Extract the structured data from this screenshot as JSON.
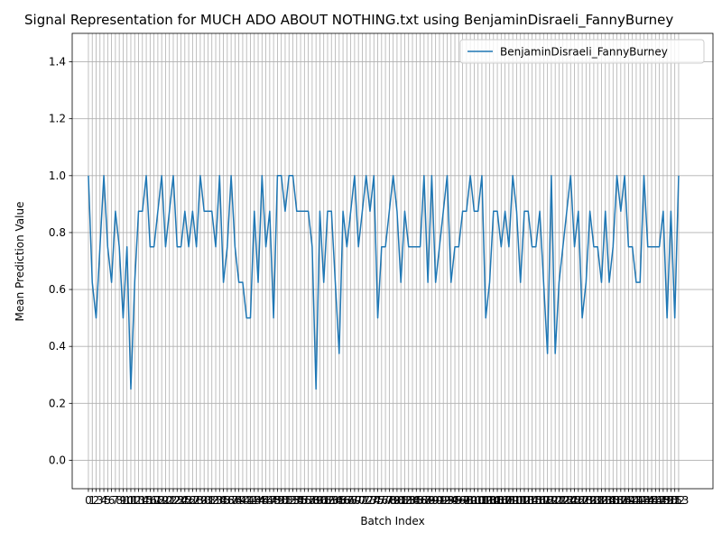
{
  "chart_data": {
    "type": "line",
    "title": "Signal Representation for MUCH ADO ABOUT NOTHING.txt using BenjaminDisraeli_FannyBurney",
    "x_label": "Batch Index",
    "y_label": "Mean Prediction Value",
    "x": [
      0,
      1,
      2,
      3,
      4,
      5,
      6,
      7,
      8,
      9,
      10,
      11,
      12,
      13,
      14,
      15,
      16,
      17,
      18,
      19,
      20,
      21,
      22,
      23,
      24,
      25,
      26,
      27,
      28,
      29,
      30,
      31,
      32,
      33,
      34,
      35,
      36,
      37,
      38,
      39,
      40,
      41,
      42,
      43,
      44,
      45,
      46,
      47,
      48,
      49,
      50,
      51,
      52,
      53,
      54,
      55,
      56,
      57,
      58,
      59,
      60,
      61,
      62,
      63,
      64,
      65,
      66,
      67,
      68,
      69,
      70,
      71,
      72,
      73,
      74,
      75,
      76,
      77,
      78,
      79,
      80,
      81,
      82,
      83,
      84,
      85,
      86,
      87,
      88,
      89,
      90,
      91,
      92,
      93,
      94,
      95,
      96,
      97,
      98,
      99,
      100,
      101,
      102,
      103,
      104,
      105,
      106,
      107,
      108,
      109,
      110,
      111,
      112,
      113,
      114,
      115,
      116,
      117,
      118,
      119,
      120,
      121,
      122,
      123,
      124,
      125,
      126,
      127,
      128,
      129,
      130,
      131,
      132,
      133,
      134,
      135,
      136,
      137,
      138,
      139,
      140,
      141,
      142,
      143,
      144,
      145,
      146,
      147,
      148,
      149,
      150,
      151,
      152,
      153
    ],
    "series": [
      {
        "name": "BenjaminDisraeli_FannyBurney",
        "color": "#1f77b4",
        "values": [
          1.0,
          0.625,
          0.5,
          0.75,
          1.0,
          0.75,
          0.625,
          0.875,
          0.75,
          0.5,
          0.75,
          0.25,
          0.625,
          0.875,
          0.875,
          1.0,
          0.75,
          0.75,
          0.875,
          1.0,
          0.75,
          0.875,
          1.0,
          0.75,
          0.75,
          0.875,
          0.75,
          0.875,
          0.75,
          1.0,
          0.875,
          0.875,
          0.875,
          0.75,
          1.0,
          0.625,
          0.75,
          1.0,
          0.75,
          0.625,
          0.625,
          0.5,
          0.5,
          0.875,
          0.625,
          1.0,
          0.75,
          0.875,
          0.5,
          1.0,
          1.0,
          0.875,
          1.0,
          1.0,
          0.875,
          0.875,
          0.875,
          0.875,
          0.75,
          0.25,
          0.875,
          0.625,
          0.875,
          0.875,
          0.625,
          0.375,
          0.875,
          0.75,
          0.875,
          1.0,
          0.75,
          0.875,
          1.0,
          0.875,
          1.0,
          0.5,
          0.75,
          0.75,
          0.875,
          1.0,
          0.875,
          0.625,
          0.875,
          0.75,
          0.75,
          0.75,
          0.75,
          1.0,
          0.625,
          1.0,
          0.625,
          0.75,
          0.875,
          1.0,
          0.625,
          0.75,
          0.75,
          0.875,
          0.875,
          1.0,
          0.875,
          0.875,
          1.0,
          0.5,
          0.625,
          0.875,
          0.875,
          0.75,
          0.875,
          0.75,
          1.0,
          0.875,
          0.625,
          0.875,
          0.875,
          0.75,
          0.75,
          0.875,
          0.625,
          0.375,
          1.0,
          0.375,
          0.625,
          0.75,
          0.875,
          1.0,
          0.75,
          0.875,
          0.5,
          0.625,
          0.875,
          0.75,
          0.75,
          0.625,
          0.875,
          0.625,
          0.75,
          1.0,
          0.875,
          1.0,
          0.75,
          0.75,
          0.625,
          0.625,
          1.0,
          0.75,
          0.75,
          0.75,
          0.75,
          0.875,
          0.5,
          0.875,
          0.5,
          1.0
        ]
      }
    ],
    "xlim": [
      -4.2,
      161.9
    ],
    "ylim": [
      -0.1,
      1.5
    ],
    "xticks": [
      0,
      1,
      2,
      3,
      4,
      5,
      6,
      7,
      8,
      9,
      10,
      11,
      12,
      13,
      14,
      15,
      16,
      17,
      18,
      19,
      20,
      21,
      22,
      23,
      24,
      25,
      26,
      27,
      28,
      29,
      30,
      31,
      32,
      33,
      34,
      35,
      36,
      37,
      38,
      39,
      40,
      41,
      42,
      43,
      44,
      45,
      46,
      47,
      48,
      49,
      50,
      51,
      52,
      53,
      54,
      55,
      56,
      57,
      58,
      59,
      60,
      61,
      62,
      63,
      64,
      65,
      66,
      67,
      68,
      69,
      70,
      71,
      72,
      73,
      74,
      75,
      76,
      77,
      78,
      79,
      80,
      81,
      82,
      83,
      84,
      85,
      86,
      87,
      88,
      89,
      90,
      91,
      92,
      93,
      94,
      95,
      96,
      97,
      98,
      99,
      100,
      101,
      102,
      103,
      104,
      105,
      106,
      107,
      108,
      109,
      110,
      111,
      112,
      113,
      114,
      115,
      116,
      117,
      118,
      119,
      120,
      121,
      122,
      123,
      124,
      125,
      126,
      127,
      128,
      129,
      130,
      131,
      132,
      133,
      134,
      135,
      136,
      137,
      138,
      139,
      140,
      141,
      142,
      143,
      144,
      145,
      146,
      147,
      148,
      149,
      150,
      151,
      152,
      153
    ],
    "yticks": [
      {
        "value": 0,
        "label": "0.0"
      },
      0.2,
      0.4,
      0.6,
      0.8,
      {
        "value": 1,
        "label": "1.0"
      },
      1.2,
      1.4
    ],
    "grid": true,
    "legend": "upper right"
  }
}
